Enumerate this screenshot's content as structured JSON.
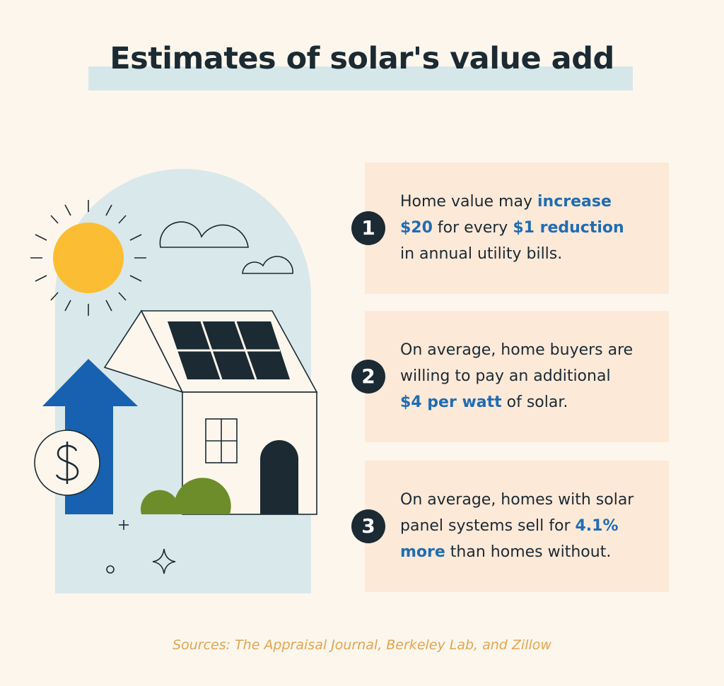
{
  "header": {
    "title": "Estimates of solar's value add"
  },
  "items": [
    {
      "number": "1",
      "lines": [
        [
          {
            "text": "Home value may ",
            "em": false
          },
          {
            "text": "increase",
            "em": true
          }
        ],
        [
          {
            "text": "$20",
            "em": true
          },
          {
            "text": " for every ",
            "em": false
          },
          {
            "text": "$1 reduction",
            "em": true
          }
        ],
        [
          {
            "text": "in annual utility bills.",
            "em": false
          }
        ]
      ]
    },
    {
      "number": "2",
      "lines": [
        [
          {
            "text": "On average, home buyers are",
            "em": false
          }
        ],
        [
          {
            "text": "willing to pay an additional",
            "em": false
          }
        ],
        [
          {
            "text": "$4 per watt",
            "em": true
          },
          {
            "text": " of solar.",
            "em": false
          }
        ]
      ]
    },
    {
      "number": "3",
      "lines": [
        [
          {
            "text": "On average, homes with solar",
            "em": false
          }
        ],
        [
          {
            "text": "panel systems sell for ",
            "em": false
          },
          {
            "text": "4.1%",
            "em": true
          }
        ],
        [
          {
            "text": "more",
            "em": true
          },
          {
            "text": " than homes without.",
            "em": false
          }
        ]
      ]
    }
  ],
  "footer": {
    "source": "Sources: The Appraisal Journal, Berkeley Lab, and Zillow"
  }
}
